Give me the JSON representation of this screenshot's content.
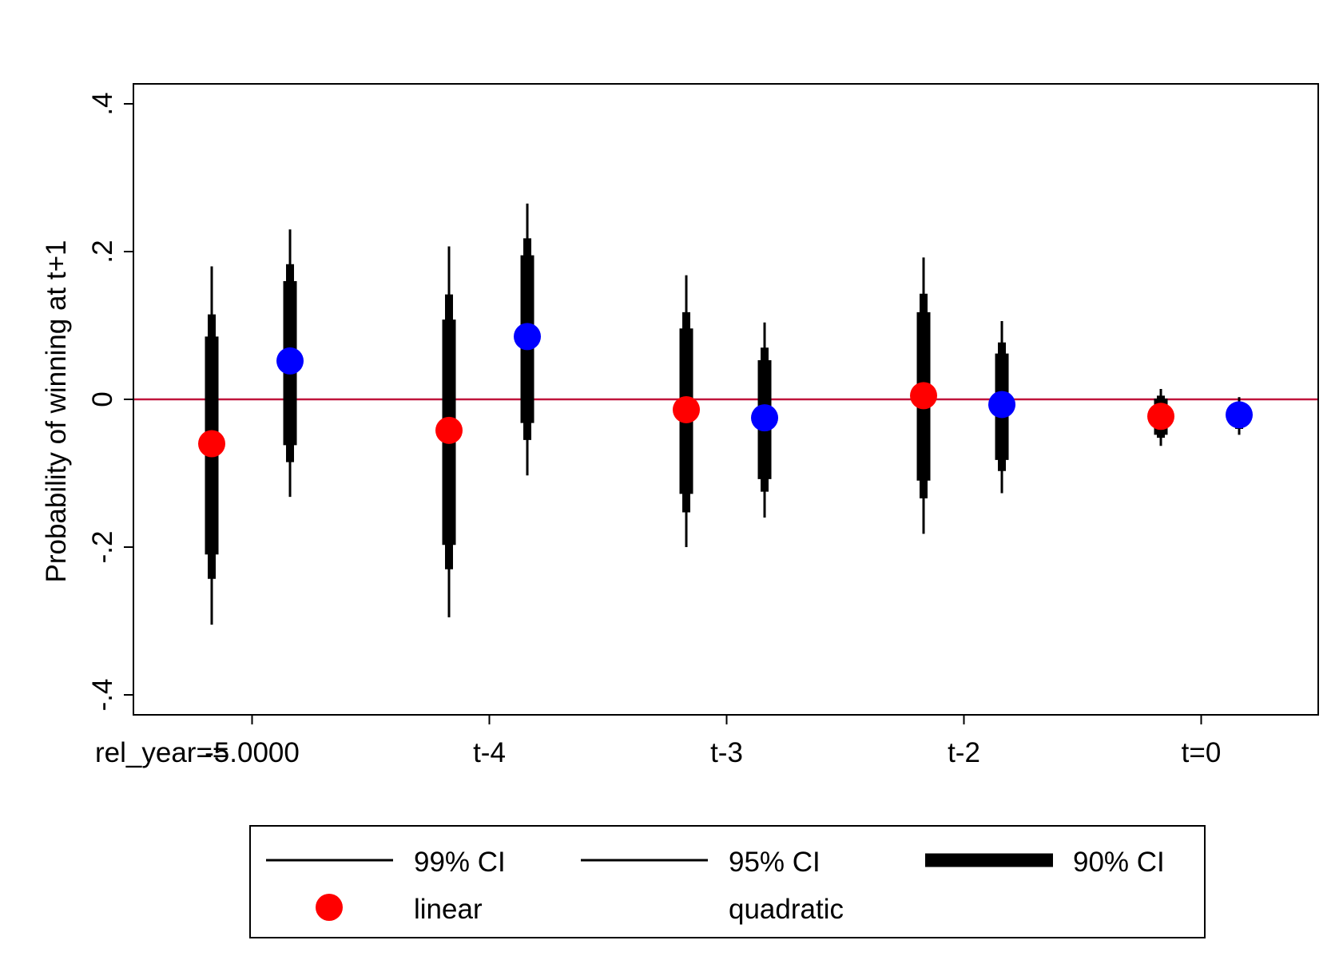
{
  "chart_data": {
    "type": "scatter",
    "ylabel": "Probability of winning at t+1",
    "ylim": [
      -0.4,
      0.4
    ],
    "yticks": [
      {
        "value": -0.4,
        "label": "-.4"
      },
      {
        "value": -0.2,
        "label": "-.2"
      },
      {
        "value": 0,
        "label": "0"
      },
      {
        "value": 0.2,
        "label": ".2"
      },
      {
        "value": 0.4,
        "label": ".4"
      }
    ],
    "xlim": [
      0,
      5
    ],
    "xticks": [
      {
        "value": 0.5,
        "label": "-5.0000"
      },
      {
        "value": 1.5,
        "label": "t-4"
      },
      {
        "value": 2.5,
        "label": "t-3"
      },
      {
        "value": 3.5,
        "label": "t-2"
      },
      {
        "value": 4.5,
        "label": "t=0"
      }
    ],
    "x_prefix_label": "rel_year==",
    "reference_line": {
      "y": 0,
      "color": "#c0143c"
    },
    "grid": false,
    "legend": {
      "placement": "bottom",
      "entries": [
        {
          "label": "99% CI",
          "kind": "line-thin"
        },
        {
          "label": "95% CI",
          "kind": "line-thin"
        },
        {
          "label": "90% CI",
          "kind": "line-thick"
        },
        {
          "label": "linear",
          "kind": "marker",
          "color": "#ff0000"
        },
        {
          "label": "quadratic",
          "kind": "none"
        }
      ]
    },
    "series": [
      {
        "name": "linear",
        "color": "#ff0000",
        "points": [
          {
            "x": 0.33,
            "estimate": -0.06,
            "ci99": [
              -0.305,
              0.18
            ],
            "ci95": [
              -0.243,
              0.115
            ],
            "ci90": [
              -0.21,
              0.085
            ]
          },
          {
            "x": 1.33,
            "estimate": -0.042,
            "ci99": [
              -0.295,
              0.207
            ],
            "ci95": [
              -0.23,
              0.142
            ],
            "ci90": [
              -0.197,
              0.108
            ]
          },
          {
            "x": 2.33,
            "estimate": -0.014,
            "ci99": [
              -0.2,
              0.168
            ],
            "ci95": [
              -0.153,
              0.118
            ],
            "ci90": [
              -0.128,
              0.096
            ]
          },
          {
            "x": 3.33,
            "estimate": 0.005,
            "ci99": [
              -0.182,
              0.192
            ],
            "ci95": [
              -0.134,
              0.143
            ],
            "ci90": [
              -0.11,
              0.118
            ]
          },
          {
            "x": 4.33,
            "estimate": -0.023,
            "ci99": [
              -0.063,
              0.014
            ],
            "ci95": [
              -0.052,
              0.005
            ],
            "ci90": [
              -0.048,
              0.001
            ]
          }
        ]
      },
      {
        "name": "quadratic",
        "color": "#0000ff",
        "points": [
          {
            "x": 0.66,
            "estimate": 0.052,
            "ci99": [
              -0.132,
              0.23
            ],
            "ci95": [
              -0.085,
              0.183
            ],
            "ci90": [
              -0.062,
              0.16
            ]
          },
          {
            "x": 1.66,
            "estimate": 0.085,
            "ci99": [
              -0.103,
              0.265
            ],
            "ci95": [
              -0.055,
              0.218
            ],
            "ci90": [
              -0.032,
              0.195
            ]
          },
          {
            "x": 2.66,
            "estimate": -0.025,
            "ci99": [
              -0.16,
              0.104
            ],
            "ci95": [
              -0.125,
              0.07
            ],
            "ci90": [
              -0.108,
              0.053
            ]
          },
          {
            "x": 3.66,
            "estimate": -0.007,
            "ci99": [
              -0.127,
              0.106
            ],
            "ci95": [
              -0.097,
              0.077
            ],
            "ci90": [
              -0.082,
              0.062
            ]
          },
          {
            "x": 4.66,
            "estimate": -0.021,
            "ci99": [
              -0.048,
              0.003
            ],
            "ci95": [
              -0.04,
              -0.005
            ],
            "ci90": [
              -0.037,
              -0.007
            ]
          }
        ]
      }
    ]
  }
}
